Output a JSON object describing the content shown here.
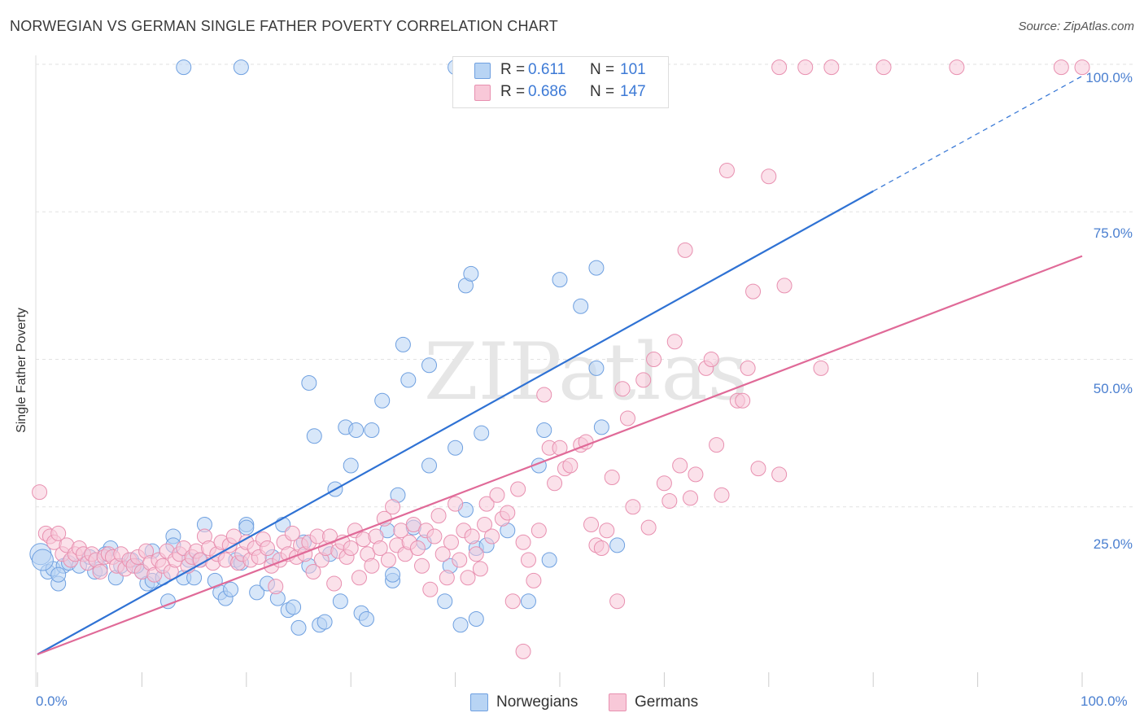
{
  "header": {
    "title": "NORWEGIAN VS GERMAN SINGLE FATHER POVERTY CORRELATION CHART",
    "source": "Source: ZipAtlas.com"
  },
  "legend": {
    "rows": [
      {
        "r_label": "R =",
        "r_value": "0.611",
        "n_label": "N =",
        "n_value": "101",
        "color": "#a8c8f0",
        "border": "#6fa0e0"
      },
      {
        "r_label": "R =",
        "r_value": "0.686",
        "n_label": "N =",
        "n_value": "147",
        "color": "#f8bcd0",
        "border": "#e890b0"
      }
    ]
  },
  "bottom_legend": {
    "items": [
      {
        "label": "Norwegians",
        "color": "#b8d4f4",
        "border": "#6fa0e0"
      },
      {
        "label": "Germans",
        "color": "#f8c8d8",
        "border": "#e890b0"
      }
    ]
  },
  "chart_data": {
    "type": "scatter",
    "title": "NORWEGIAN VS GERMAN SINGLE FATHER POVERTY CORRELATION CHART",
    "xlabel": "",
    "ylabel": "Single Father Poverty",
    "xlim": [
      0,
      100
    ],
    "ylim": [
      0,
      100
    ],
    "x_tick_labels": [
      "0.0%",
      "100.0%"
    ],
    "y_tick_labels": [
      "100.0%",
      "75.0%",
      "50.0%",
      "25.0%"
    ],
    "y_tick_values": [
      100,
      75,
      50,
      25
    ],
    "watermark": "ZIPatlas",
    "grid": true,
    "legend_position": "top-center",
    "series": [
      {
        "name": "Norwegians",
        "color": "#6fa0e0",
        "fill": "#b8d4f4",
        "r": 0.611,
        "n": 101,
        "trend": {
          "x0": 0,
          "y0": 0,
          "x1": 80,
          "y1": 78.5,
          "dashed_to_x": 100,
          "dashed_to_y": 98
        },
        "points": [
          [
            0.3,
            17
          ],
          [
            1,
            14
          ],
          [
            1.5,
            14.5
          ],
          [
            2,
            12
          ],
          [
            2.5,
            15
          ],
          [
            3,
            15.5
          ],
          [
            4,
            15
          ],
          [
            5,
            16.5
          ],
          [
            5.5,
            14
          ],
          [
            6,
            14.5
          ],
          [
            7,
            18
          ],
          [
            7.5,
            13
          ],
          [
            8,
            15
          ],
          [
            9,
            16
          ],
          [
            10,
            14
          ],
          [
            10.5,
            12
          ],
          [
            11,
            12.5
          ],
          [
            12,
            13
          ],
          [
            12.5,
            9
          ],
          [
            13,
            20
          ],
          [
            14,
            13
          ],
          [
            14.5,
            16
          ],
          [
            15,
            13
          ],
          [
            15.5,
            16
          ],
          [
            16,
            22
          ],
          [
            17,
            12.5
          ],
          [
            17.5,
            10.5
          ],
          [
            18,
            9.5
          ],
          [
            19,
            16
          ],
          [
            19.5,
            15.5
          ],
          [
            20,
            22
          ],
          [
            20,
            21.5
          ],
          [
            21,
            10.5
          ],
          [
            22,
            12
          ],
          [
            22.5,
            16.5
          ],
          [
            23,
            9.5
          ],
          [
            23.5,
            22
          ],
          [
            24,
            7.5
          ],
          [
            25,
            4.5
          ],
          [
            25.5,
            19
          ],
          [
            26,
            15
          ],
          [
            26,
            46
          ],
          [
            26.5,
            37
          ],
          [
            27,
            5
          ],
          [
            27.5,
            5.5
          ],
          [
            28,
            17
          ],
          [
            28.5,
            28
          ],
          [
            29,
            9
          ],
          [
            29.5,
            38.5
          ],
          [
            30,
            32
          ],
          [
            30.5,
            38
          ],
          [
            31,
            7
          ],
          [
            31.5,
            6
          ],
          [
            32,
            38
          ],
          [
            33,
            43
          ],
          [
            33.5,
            21
          ],
          [
            34,
            12.5
          ],
          [
            34,
            13.5
          ],
          [
            34.5,
            27
          ],
          [
            35,
            52.5
          ],
          [
            35.5,
            46.5
          ],
          [
            36,
            21.5
          ],
          [
            37,
            19
          ],
          [
            37.5,
            32
          ],
          [
            37.5,
            49
          ],
          [
            39,
            9
          ],
          [
            39.5,
            15
          ],
          [
            40,
            35
          ],
          [
            40.5,
            5
          ],
          [
            41,
            62.5
          ],
          [
            41.5,
            64.5
          ],
          [
            41,
            24.5
          ],
          [
            42,
            6
          ],
          [
            42.5,
            37.5
          ],
          [
            42,
            18
          ],
          [
            43,
            18.5
          ],
          [
            45,
            21
          ],
          [
            47,
            9
          ],
          [
            48,
            32
          ],
          [
            48.5,
            38
          ],
          [
            49,
            16
          ],
          [
            50,
            63.5
          ],
          [
            52,
            59
          ],
          [
            53.5,
            65.5
          ],
          [
            53.5,
            48.5
          ],
          [
            54,
            38.5
          ],
          [
            55.5,
            18.5
          ],
          [
            14,
            99.5
          ],
          [
            19.5,
            99.5
          ],
          [
            40,
            99.5
          ],
          [
            46.5,
            99.5
          ],
          [
            51,
            99.5
          ],
          [
            0.5,
            16
          ],
          [
            2,
            13.5
          ],
          [
            6.5,
            17
          ],
          [
            9.5,
            15
          ],
          [
            11,
            17.5
          ],
          [
            13,
            18.5
          ],
          [
            18.5,
            11
          ],
          [
            24.5,
            8
          ]
        ]
      },
      {
        "name": "Germans",
        "color": "#e890b0",
        "fill": "#f8c8d8",
        "r": 0.686,
        "n": 147,
        "trend": {
          "x0": 0,
          "y0": 0,
          "x1": 100,
          "y1": 67.5
        },
        "points": [
          [
            0.2,
            27.5
          ],
          [
            0.8,
            20.5
          ],
          [
            1.2,
            20
          ],
          [
            1.6,
            19
          ],
          [
            2,
            20.5
          ],
          [
            2.4,
            17
          ],
          [
            2.8,
            18.5
          ],
          [
            3.2,
            16
          ],
          [
            3.6,
            17
          ],
          [
            4,
            18
          ],
          [
            4.4,
            17
          ],
          [
            4.8,
            15.5
          ],
          [
            5.2,
            17
          ],
          [
            5.6,
            16
          ],
          [
            6,
            14
          ],
          [
            6.4,
            16.5
          ],
          [
            6.8,
            17
          ],
          [
            7.2,
            16.5
          ],
          [
            7.6,
            15
          ],
          [
            8,
            17
          ],
          [
            8.4,
            14.5
          ],
          [
            8.8,
            16
          ],
          [
            9.2,
            15
          ],
          [
            9.6,
            16.5
          ],
          [
            10,
            14
          ],
          [
            10.4,
            17.5
          ],
          [
            10.8,
            15.5
          ],
          [
            11.2,
            13.5
          ],
          [
            11.6,
            16
          ],
          [
            12,
            15
          ],
          [
            12.4,
            17.5
          ],
          [
            12.8,
            14
          ],
          [
            13.2,
            16
          ],
          [
            13.6,
            17
          ],
          [
            14,
            18
          ],
          [
            14.4,
            15
          ],
          [
            14.8,
            16.5
          ],
          [
            15.2,
            17.5
          ],
          [
            15.6,
            16
          ],
          [
            16,
            20
          ],
          [
            16.4,
            18
          ],
          [
            16.8,
            15.5
          ],
          [
            17.2,
            17
          ],
          [
            17.6,
            19
          ],
          [
            18,
            16
          ],
          [
            18.4,
            18.5
          ],
          [
            18.8,
            20
          ],
          [
            19.2,
            15.5
          ],
          [
            19.6,
            17
          ],
          [
            20,
            19
          ],
          [
            20.4,
            16
          ],
          [
            20.8,
            18
          ],
          [
            21.2,
            16.5
          ],
          [
            21.6,
            19.5
          ],
          [
            22,
            18
          ],
          [
            22.4,
            15
          ],
          [
            22.8,
            11.5
          ],
          [
            23.2,
            16
          ],
          [
            23.6,
            19
          ],
          [
            24,
            17
          ],
          [
            24.4,
            20.5
          ],
          [
            24.8,
            16.5
          ],
          [
            25.2,
            18.5
          ],
          [
            25.6,
            17
          ],
          [
            26,
            19
          ],
          [
            26.4,
            14
          ],
          [
            26.8,
            20
          ],
          [
            27.2,
            16
          ],
          [
            27.6,
            18
          ],
          [
            28,
            20
          ],
          [
            28.4,
            12
          ],
          [
            28.8,
            17.5
          ],
          [
            29.2,
            19
          ],
          [
            29.6,
            16.5
          ],
          [
            30,
            18
          ],
          [
            30.4,
            21
          ],
          [
            30.8,
            13
          ],
          [
            31.2,
            19.5
          ],
          [
            31.6,
            17
          ],
          [
            32,
            15
          ],
          [
            32.4,
            20
          ],
          [
            32.8,
            18
          ],
          [
            33.2,
            23
          ],
          [
            33.6,
            16
          ],
          [
            34,
            25
          ],
          [
            34.4,
            18.5
          ],
          [
            34.8,
            21
          ],
          [
            35.2,
            17
          ],
          [
            35.6,
            19
          ],
          [
            36,
            22
          ],
          [
            36.4,
            18
          ],
          [
            36.8,
            15
          ],
          [
            37.2,
            21
          ],
          [
            37.6,
            11
          ],
          [
            38,
            20
          ],
          [
            38.4,
            23.5
          ],
          [
            38.8,
            17
          ],
          [
            39.2,
            13
          ],
          [
            39.6,
            19
          ],
          [
            40,
            25.5
          ],
          [
            40.4,
            16
          ],
          [
            40.8,
            21
          ],
          [
            41.2,
            13
          ],
          [
            41.6,
            20
          ],
          [
            42,
            17
          ],
          [
            42.4,
            14.5
          ],
          [
            42.8,
            22
          ],
          [
            43,
            25.5
          ],
          [
            43.5,
            20
          ],
          [
            44,
            27
          ],
          [
            44.5,
            23
          ],
          [
            45,
            24
          ],
          [
            45.5,
            9
          ],
          [
            46,
            28
          ],
          [
            46.5,
            19
          ],
          [
            47,
            16
          ],
          [
            47.5,
            12.5
          ],
          [
            48,
            21
          ],
          [
            48.5,
            44
          ],
          [
            49,
            35
          ],
          [
            49.5,
            29
          ],
          [
            50,
            35
          ],
          [
            50.5,
            31.5
          ],
          [
            51,
            32
          ],
          [
            52,
            35.5
          ],
          [
            52.5,
            36
          ],
          [
            53,
            22
          ],
          [
            53.5,
            18.5
          ],
          [
            54,
            18
          ],
          [
            54.5,
            21
          ],
          [
            55,
            30
          ],
          [
            55.5,
            9
          ],
          [
            56,
            45
          ],
          [
            56.5,
            40
          ],
          [
            57,
            25
          ],
          [
            58,
            46.5
          ],
          [
            58.5,
            21.5
          ],
          [
            59,
            50
          ],
          [
            60,
            29
          ],
          [
            60.5,
            26
          ],
          [
            61,
            53
          ],
          [
            61.5,
            32
          ],
          [
            62,
            68.5
          ],
          [
            62.5,
            26.5
          ],
          [
            63,
            30.5
          ],
          [
            64,
            48.5
          ],
          [
            64.5,
            50
          ],
          [
            65,
            35.5
          ],
          [
            65.5,
            27
          ],
          [
            66,
            82
          ],
          [
            67,
            43
          ],
          [
            67.5,
            43
          ],
          [
            68,
            48.5
          ],
          [
            68.5,
            61.5
          ],
          [
            69,
            31.5
          ],
          [
            70,
            81
          ],
          [
            71,
            30.5
          ],
          [
            71.5,
            62.5
          ],
          [
            75,
            48.5
          ],
          [
            46.5,
            0.5
          ],
          [
            58,
            99.5
          ],
          [
            71,
            99.5
          ],
          [
            73.5,
            99.5
          ],
          [
            81,
            99.5
          ],
          [
            98,
            99.5
          ],
          [
            100,
            99.5
          ],
          [
            76,
            99.5
          ],
          [
            88,
            99.5
          ]
        ]
      }
    ]
  }
}
